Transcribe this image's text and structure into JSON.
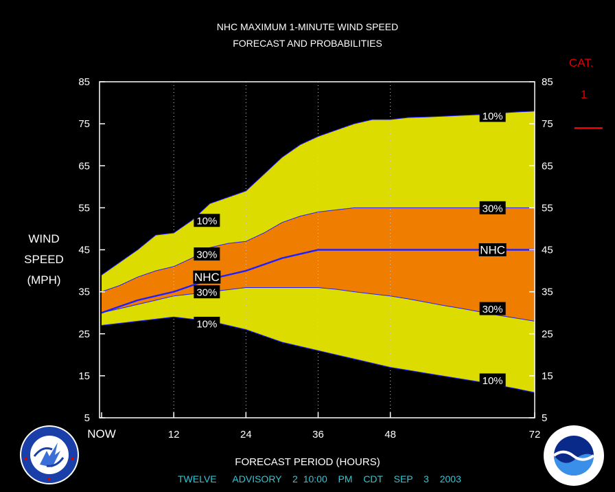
{
  "header": {
    "title": "NHC MAXIMUM 1-MINUTE WIND SPEED",
    "subtitle": "FORECAST AND PROBABILITIES"
  },
  "axes": {
    "ylabel_lines": [
      "WIND",
      "SPEED",
      "(MPH)"
    ],
    "xlabel": "FORECAST PERIOD (HOURS)"
  },
  "footer": {
    "advisory": "TWELVE   ADVISORY  2 10:00  PM  CDT  SEP  3  2003"
  },
  "category": {
    "title": "CAT.",
    "value": "1",
    "line_color": "#e00000"
  },
  "logos": {
    "left": "national-weather-service-logo",
    "right": "noaa-logo"
  },
  "chart_data": {
    "type": "area",
    "title": "NHC MAXIMUM 1-MINUTE WIND SPEED FORECAST AND PROBABILITIES",
    "xlabel": "FORECAST PERIOD (HOURS)",
    "ylabel": "WIND SPEED (MPH)",
    "xlim": [
      0,
      72
    ],
    "ylim": [
      5,
      85
    ],
    "xticks": [
      0,
      12,
      24,
      36,
      48,
      72
    ],
    "xtick_labels": [
      "NOW",
      "12",
      "24",
      "36",
      "48",
      "72"
    ],
    "yticks": [
      5,
      15,
      25,
      35,
      45,
      55,
      65,
      75,
      85
    ],
    "ytick_labels": [
      "5",
      "15",
      "25",
      "35",
      "45",
      "55",
      "65",
      "75",
      "85"
    ],
    "grid": "vertical dotted at 12, 24, 36, 48",
    "x": [
      0,
      3,
      6,
      9,
      12,
      15,
      18,
      21,
      24,
      27,
      30,
      33,
      36,
      39,
      42,
      45,
      48,
      51,
      54,
      57,
      60,
      63,
      66,
      69,
      72
    ],
    "series": [
      {
        "name": "10%",
        "color": "#dcdc00",
        "values": [
          39,
          42,
          45,
          48.5,
          49,
          52,
          56,
          57.5,
          59,
          63,
          67,
          70,
          72,
          73.5,
          75,
          76,
          76,
          76.5,
          76.6,
          76.8,
          77,
          77.2,
          77.5,
          77.8,
          78
        ]
      },
      {
        "name": "30%",
        "color": "#ee7d00",
        "values": [
          35,
          36.5,
          38.5,
          40,
          41,
          43,
          45.5,
          46.5,
          47,
          49,
          51.5,
          53,
          54,
          54.5,
          55,
          55,
          55,
          55,
          55,
          55,
          55,
          55,
          55,
          55,
          55
        ]
      },
      {
        "name": "NHC",
        "color": "#2020ff",
        "values": [
          30,
          31.5,
          33,
          34,
          35,
          36.5,
          38,
          39,
          40,
          41.5,
          43,
          44,
          45,
          45,
          45,
          45,
          45,
          45,
          45,
          45,
          45,
          45,
          45,
          45,
          45
        ]
      },
      {
        "name": "30%",
        "color": "#ee7d00",
        "values": [
          30,
          31,
          32,
          33,
          34,
          34.5,
          35,
          35.5,
          36,
          36,
          36,
          36,
          36,
          35.6,
          35,
          34.5,
          34,
          33.3,
          32.5,
          31.7,
          31,
          30.2,
          29.4,
          28.7,
          28
        ]
      },
      {
        "name": "10%",
        "color": "#dcdc00",
        "values": [
          27,
          27.5,
          28,
          28.5,
          29,
          28.5,
          28,
          27,
          26,
          24.5,
          23,
          22,
          21,
          20,
          19,
          18,
          17,
          16.3,
          15.6,
          14.9,
          14.2,
          13.5,
          12.7,
          11.9,
          11
        ]
      }
    ],
    "labels": [
      {
        "text": "10%",
        "x": 17.5,
        "y": 52
      },
      {
        "text": "30%",
        "x": 17.5,
        "y": 44
      },
      {
        "text": "NHC",
        "x": 17.5,
        "y": 38.5
      },
      {
        "text": "30%",
        "x": 17.5,
        "y": 35
      },
      {
        "text": "10%",
        "x": 17.5,
        "y": 27.5
      },
      {
        "text": "10%",
        "x": 65,
        "y": 77
      },
      {
        "text": "30%",
        "x": 65,
        "y": 55
      },
      {
        "text": "NHC",
        "x": 65,
        "y": 45
      },
      {
        "text": "30%",
        "x": 65,
        "y": 31
      },
      {
        "text": "10%",
        "x": 65,
        "y": 14
      }
    ]
  }
}
